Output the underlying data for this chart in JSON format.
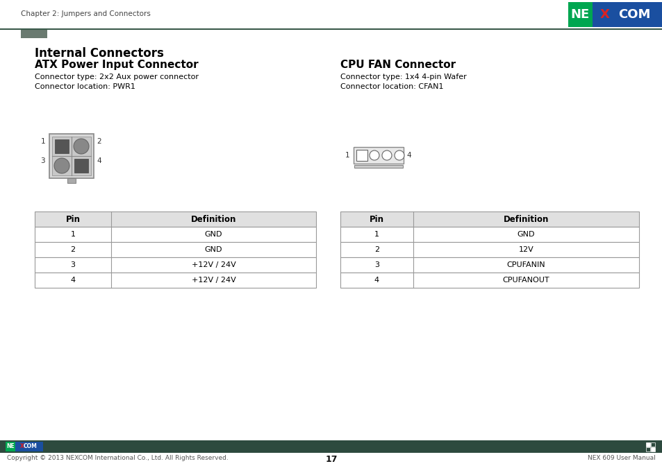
{
  "page_title": "Chapter 2: Jumpers and Connectors",
  "section_title": "Internal Connectors",
  "left_connector_title": "ATX Power Input Connector",
  "left_connector_type": "Connector type: 2x2 Aux power connector",
  "left_connector_location": "Connector location: PWR1",
  "right_connector_title": "CPU FAN Connector",
  "right_connector_type": "Connector type: 1x4 4-pin Wafer",
  "right_connector_location": "Connector location: CFAN1",
  "left_table_headers": [
    "Pin",
    "Definition"
  ],
  "left_table_rows": [
    [
      "1",
      "GND"
    ],
    [
      "2",
      "GND"
    ],
    [
      "3",
      "+12V / 24V"
    ],
    [
      "4",
      "+12V / 24V"
    ]
  ],
  "right_table_headers": [
    "Pin",
    "Definition"
  ],
  "right_table_rows": [
    [
      "1",
      "GND"
    ],
    [
      "2",
      "12V"
    ],
    [
      "3",
      "CPUFANIN"
    ],
    [
      "4",
      "CPUFANOUT"
    ]
  ],
  "footer_bar_color": "#2d4a3e",
  "footer_text_left": "Copyright © 2013 NEXCOM International Co., Ltd. All Rights Reserved.",
  "footer_text_center": "17",
  "footer_text_right": "NEX 609 User Manual",
  "header_line_color": "#3a5a4a",
  "accent_bar_color": "#6a7a70",
  "bg_color": "#ffffff",
  "text_color": "#000000",
  "table_header_bg": "#e0e0e0",
  "table_border_color": "#999999",
  "nexcom_green": "#00a650",
  "nexcom_blue": "#1a4fa0",
  "nexcom_red": "#dd2222"
}
